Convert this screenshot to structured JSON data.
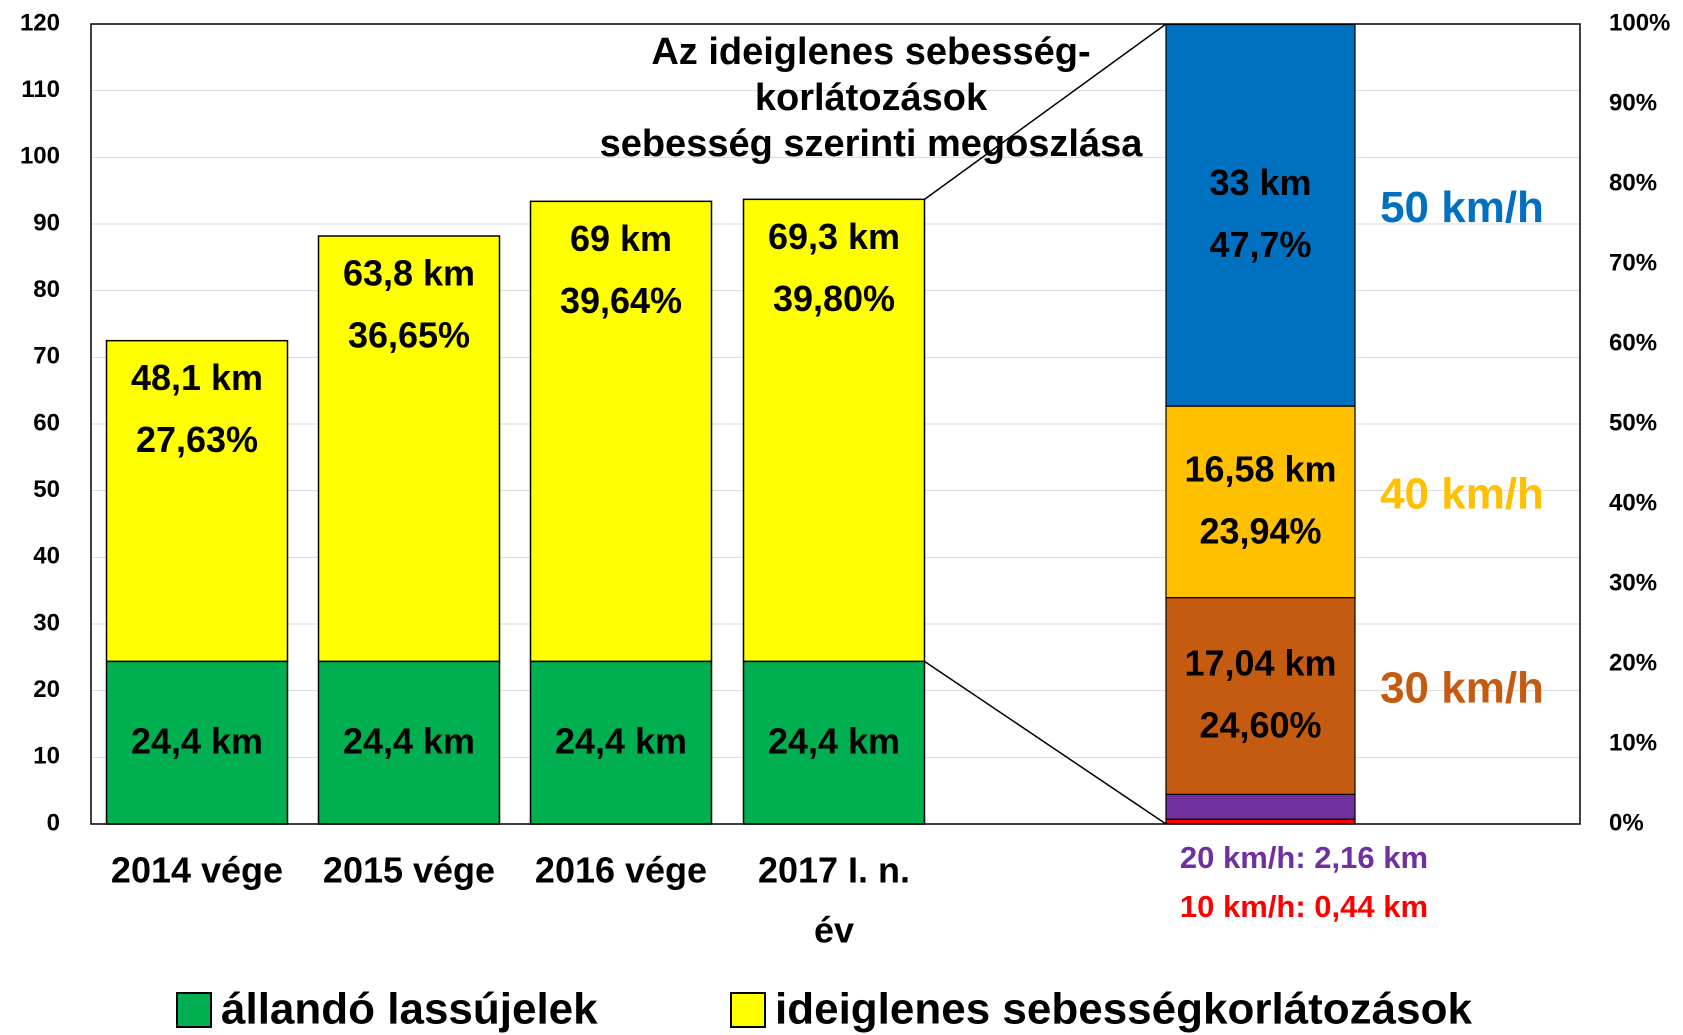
{
  "chart_data": [
    {
      "type": "bar",
      "stacked": true,
      "categories": [
        "2014 vége",
        "2015 vége",
        "2016 vége",
        "2017 I. n."
      ],
      "xlabel": "év",
      "series": [
        {
          "name": "állandó lassújelek",
          "color": "#00b050",
          "values": [
            24.4,
            24.4,
            24.4,
            24.4
          ],
          "value_labels": [
            "24,4 km",
            "24,4 km",
            "24,4 km",
            "24,4 km"
          ]
        },
        {
          "name": "ideiglenes sebességkorlátozások",
          "color": "#ffff00",
          "values": [
            48.1,
            63.8,
            69,
            69.3
          ],
          "value_labels": [
            "48,1 km",
            "63,8 km",
            "69 km",
            "69,3 km"
          ],
          "share_labels": [
            "27,63%",
            "36,65%",
            "39,64%",
            "39,80%"
          ]
        }
      ],
      "ylim": [
        0,
        120
      ],
      "yticks": [
        0,
        10,
        20,
        30,
        40,
        50,
        60,
        70,
        80,
        90,
        100,
        110,
        120
      ],
      "grid": true,
      "legend": "bottom"
    },
    {
      "type": "bar",
      "stacked": true,
      "title": [
        "Az ideiglenes sebesség-",
        "korlátozások",
        "sebesség szerinti megoszlása"
      ],
      "y2lim": [
        0,
        100
      ],
      "y2ticks": [
        {
          "value": 0,
          "label": "0%"
        },
        {
          "value": 10,
          "label": "10%"
        },
        {
          "value": 20,
          "label": "20%"
        },
        {
          "value": 30,
          "label": "30%"
        },
        {
          "value": 40,
          "label": "40%"
        },
        {
          "value": 50,
          "label": "50%"
        },
        {
          "value": 60,
          "label": "60%"
        },
        {
          "value": 70,
          "label": "70%"
        },
        {
          "value": 80,
          "label": "80%"
        },
        {
          "value": 90,
          "label": "90%"
        },
        {
          "value": 100,
          "label": "100%"
        }
      ],
      "series": [
        {
          "label": "10 km/h: 0,44 km",
          "color": "#ff0000",
          "axis": "y2",
          "values": [
            0.6
          ]
        },
        {
          "label": "20 km/h: 2,16 km",
          "color": "#7030a0",
          "axis": "y2",
          "values": [
            3.1
          ]
        },
        {
          "name": "30 km/h",
          "color": "#c55a11",
          "axis": "y2",
          "values": [
            24.6
          ],
          "value_labels": [
            "24,60%"
          ],
          "km_label": "17,04 km"
        },
        {
          "name": "40 km/h",
          "color": "#ffc000",
          "axis": "y2",
          "values": [
            23.94
          ],
          "value_labels": [
            "23,94%"
          ],
          "km_label": "16,58 km"
        },
        {
          "name": "50 km/h",
          "color": "#0070c0",
          "axis": "y2",
          "values": [
            47.7
          ],
          "value_labels": [
            "47,7%"
          ],
          "km_label": "33 km"
        }
      ]
    }
  ]
}
